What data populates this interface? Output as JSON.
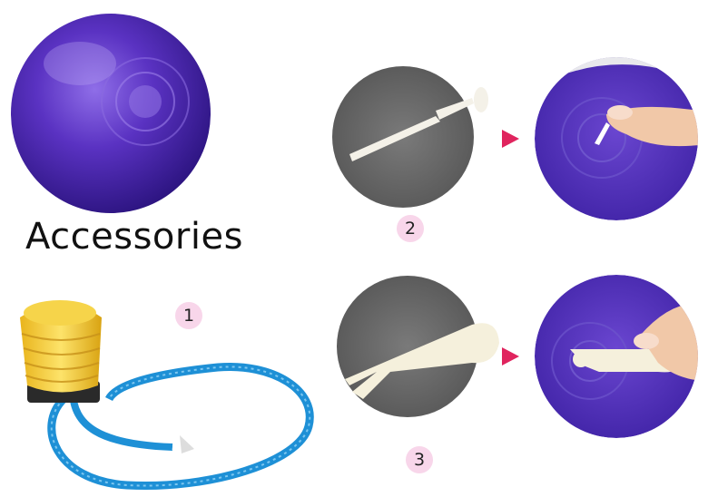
{
  "title": "Accessories",
  "steps": [
    {
      "number": "1"
    },
    {
      "number": "2"
    },
    {
      "number": "3"
    }
  ],
  "colors": {
    "ball": "#4b2ab0",
    "pump_body": "#f2c72e",
    "pump_base": "#2a2a2a",
    "hose": "#1e90d6",
    "gray_circle": "#6b6b6b",
    "arrow": "#e0245e",
    "badge": "#f8d6ea"
  }
}
